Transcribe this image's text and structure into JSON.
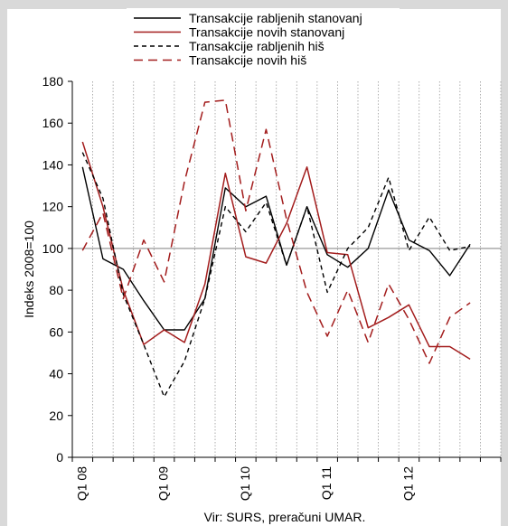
{
  "chart_data": {
    "type": "line",
    "title": "",
    "xlabel": "",
    "ylabel": "Indeks 2008=100",
    "ylim": [
      0,
      180
    ],
    "yticks": [
      0,
      20,
      40,
      60,
      80,
      100,
      120,
      140,
      160,
      180
    ],
    "reference_line": 100,
    "grid": "vertical-dotted",
    "legend": "top-center",
    "categories": [
      "Q1 08",
      "",
      "",
      "",
      "Q1 09",
      "",
      "",
      "",
      "Q1 10",
      "",
      "",
      "",
      "Q1 11",
      "",
      "",
      "",
      "Q1 12",
      "",
      "",
      "",
      ""
    ],
    "x_tick_labels": [
      "Q1 08",
      "Q1 09",
      "Q1 10",
      "Q1 11",
      "Q1 12"
    ],
    "series": [
      {
        "name": "Transakcije rabljenih stanovanj",
        "color": "#000000",
        "dash": "solid",
        "values": [
          139,
          95,
          90,
          75,
          61,
          61,
          76,
          129,
          120,
          125,
          92,
          120,
          97,
          91,
          100,
          128,
          104,
          99,
          87,
          102,
          null
        ]
      },
      {
        "name": "Transakcije novih stanovanj",
        "color": "#a31d1d",
        "dash": "solid",
        "values": [
          151,
          120,
          80,
          54,
          61,
          55,
          83,
          136,
          96,
          93,
          112,
          139,
          98,
          97,
          62,
          67,
          73,
          53,
          53,
          47,
          null
        ]
      },
      {
        "name": "Transakcije rabljenih hiš",
        "color": "#000000",
        "dash": "dashed",
        "values": [
          146,
          124,
          78,
          54,
          29,
          46,
          76,
          120,
          108,
          122,
          92,
          120,
          79,
          100,
          110,
          134,
          99,
          115,
          99,
          101,
          null
        ]
      },
      {
        "name": "Transakcije novih hiš",
        "color": "#a31d1d",
        "dash": "dashed",
        "values": [
          99,
          117,
          76,
          104,
          84,
          132,
          170,
          171,
          118,
          157,
          114,
          79,
          58,
          80,
          55,
          83,
          66,
          45,
          67,
          74,
          null
        ]
      }
    ],
    "source_note": "Vir: SURS,  preračuni UMAR."
  }
}
